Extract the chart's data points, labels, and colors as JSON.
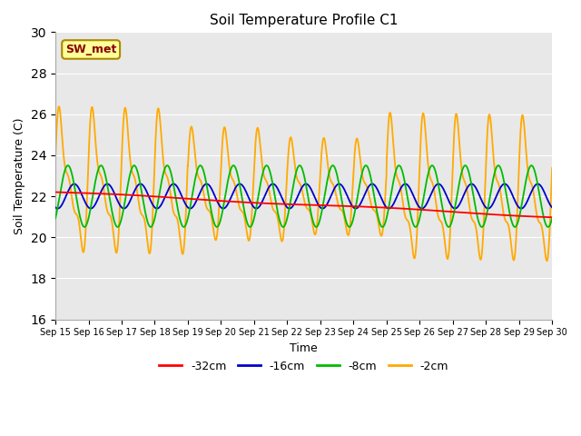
{
  "title": "Soil Temperature Profile C1",
  "xlabel": "Time",
  "ylabel": "Soil Temperature (C)",
  "ylim": [
    16,
    30
  ],
  "yticks": [
    16,
    18,
    20,
    22,
    24,
    26,
    28,
    30
  ],
  "num_days": 15,
  "start_day": 15,
  "end_day": 30,
  "plot_bg": "#e8e8e8",
  "fig_bg": "#ffffff",
  "annotation_label": "SW_met",
  "annotation_bg": "#ffff99",
  "annotation_border": "#aa8800",
  "series_colors": {
    "-32cm": "#ff0000",
    "-16cm": "#0000cc",
    "-8cm": "#00bb00",
    "-2cm": "#ffaa00"
  },
  "points_per_day": 144,
  "base_temp": 22.0
}
